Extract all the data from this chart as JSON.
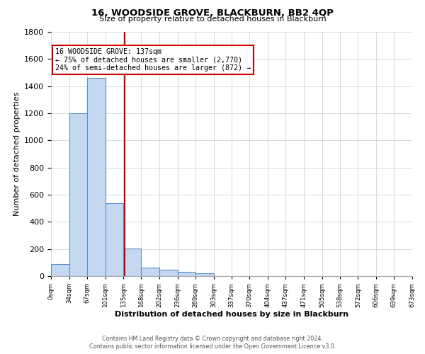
{
  "title": "16, WOODSIDE GROVE, BLACKBURN, BB2 4QP",
  "subtitle": "Size of property relative to detached houses in Blackburn",
  "xlabel": "Distribution of detached houses by size in Blackburn",
  "ylabel": "Number of detached properties",
  "bin_edges": [
    0,
    34,
    67,
    101,
    135,
    168,
    202,
    236,
    269,
    303,
    337,
    370,
    404,
    437,
    471,
    505,
    538,
    572,
    606,
    639,
    673
  ],
  "bin_counts": [
    90,
    1200,
    1460,
    540,
    205,
    65,
    48,
    30,
    20,
    0,
    0,
    0,
    0,
    0,
    0,
    0,
    0,
    0,
    0,
    0
  ],
  "bar_color": "#c5d8f0",
  "bar_edge_color": "#5b8fc9",
  "property_size": 137,
  "vline_color": "#cc0000",
  "annotation_line1": "16 WOODSIDE GROVE: 137sqm",
  "annotation_line2": "← 75% of detached houses are smaller (2,770)",
  "annotation_line3": "24% of semi-detached houses are larger (872) →",
  "annotation_box_edgecolor": "#cc0000",
  "ylim": [
    0,
    1800
  ],
  "yticks": [
    0,
    200,
    400,
    600,
    800,
    1000,
    1200,
    1400,
    1600,
    1800
  ],
  "footer_line1": "Contains HM Land Registry data © Crown copyright and database right 2024.",
  "footer_line2": "Contains public sector information licensed under the Open Government Licence v3.0.",
  "bg_color": "#ffffff",
  "grid_color": "#cccccc"
}
